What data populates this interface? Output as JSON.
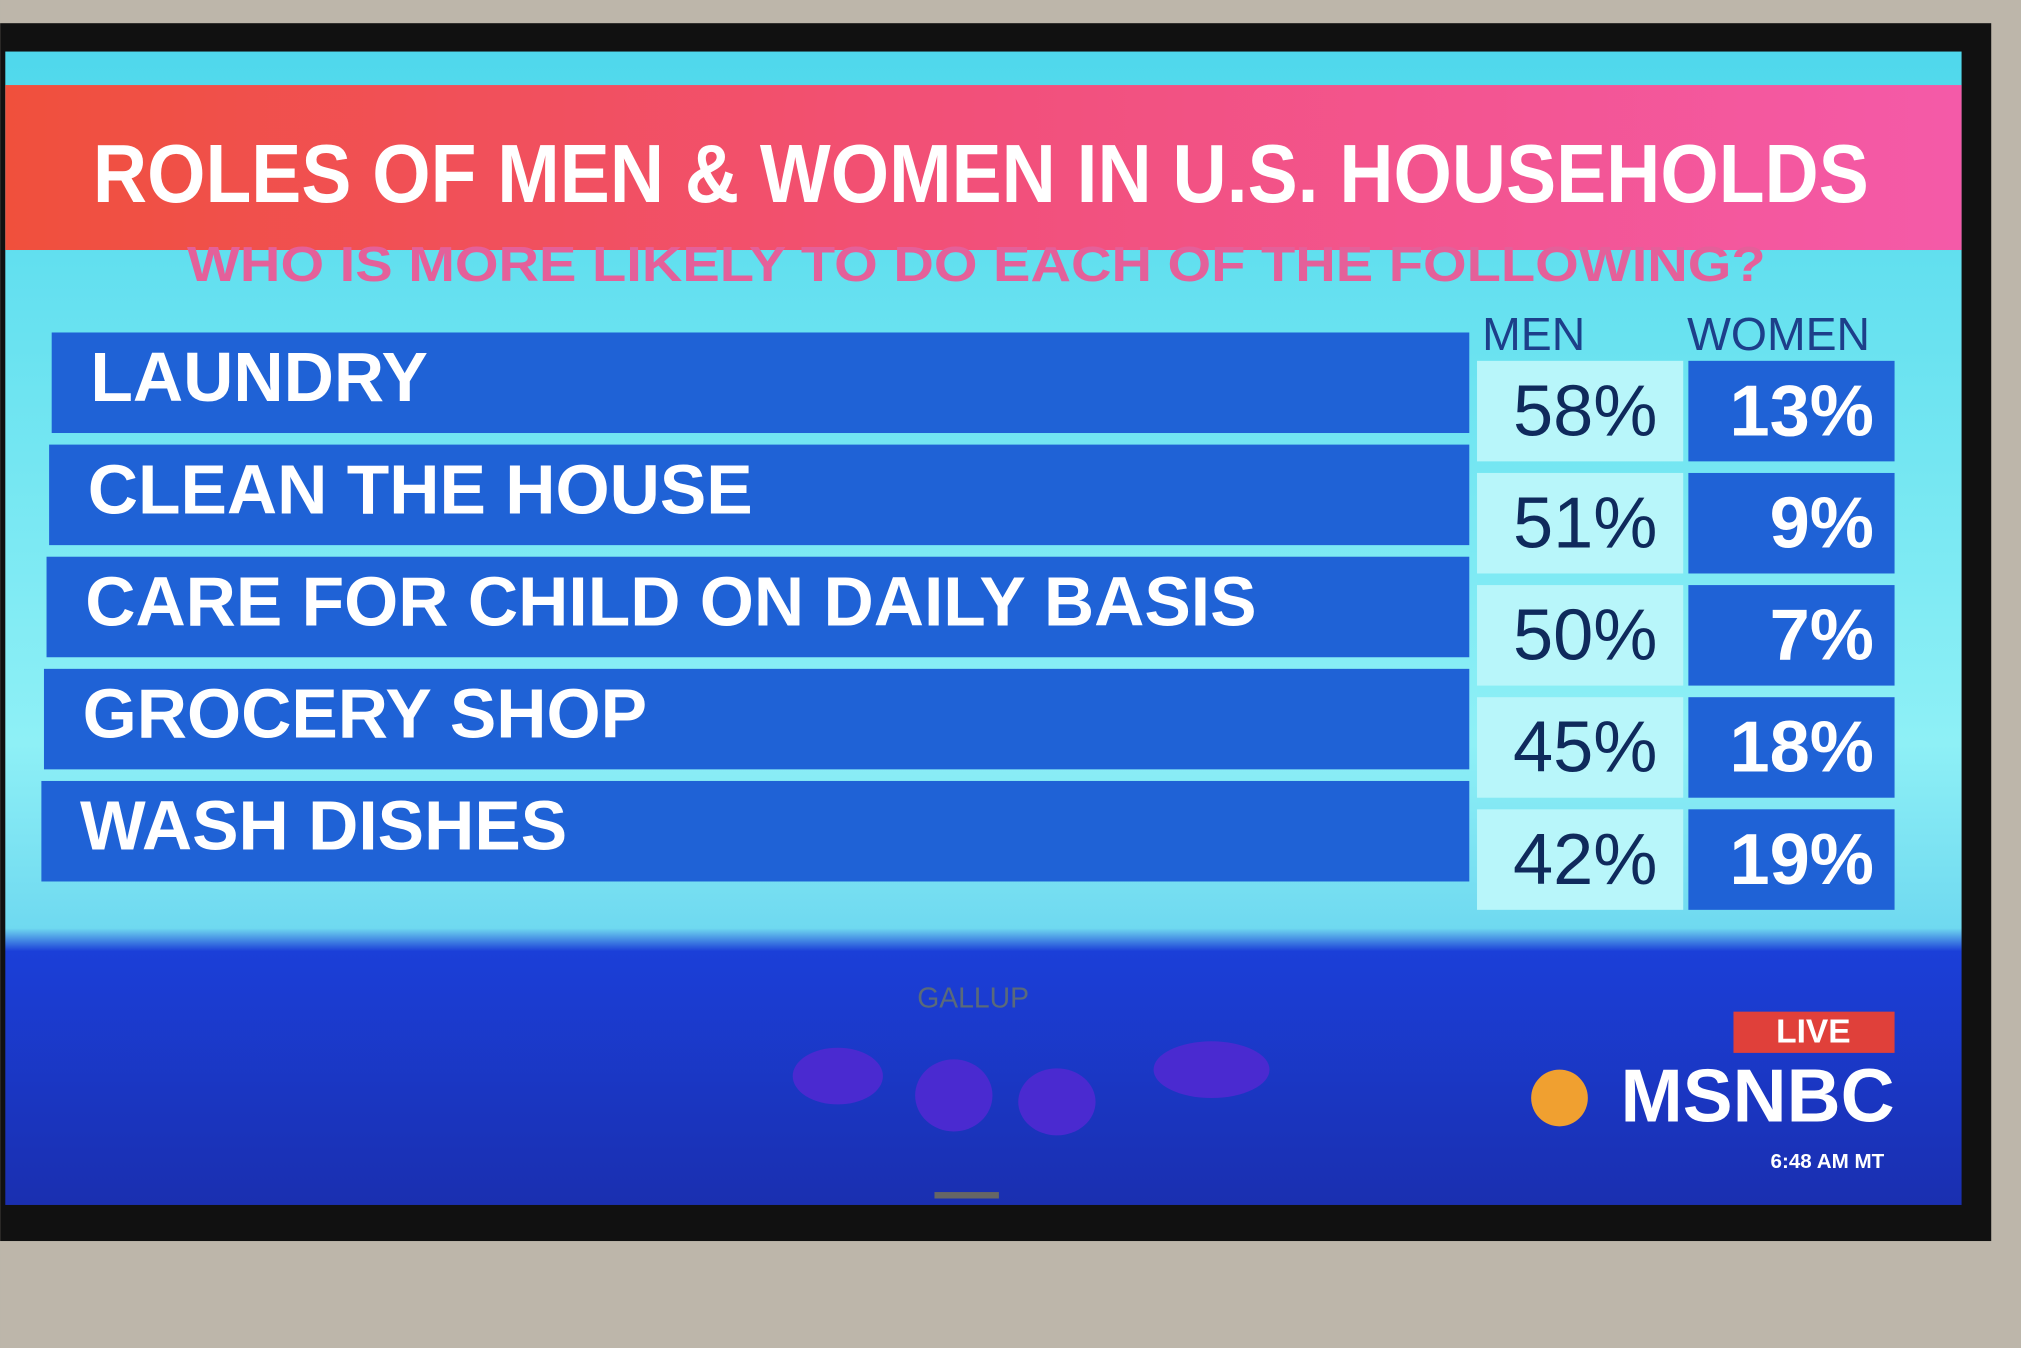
{
  "title": "ROLES OF MEN & WOMEN IN U.S. HOUSEHOLDS",
  "subtitle": "WHO IS MORE LIKELY TO DO EACH OF THE FOLLOWING?",
  "table": {
    "header": [
      "MEN",
      "WOMEN"
    ],
    "rows": [
      [
        "LAUNDRY",
        "58%",
        "13%"
      ],
      [
        "CLEAN THE HOUSE",
        "51%",
        "9%"
      ],
      [
        "CARE FOR CHILD ON DAILY BASIS",
        "50%",
        "7%"
      ],
      [
        "GROCERY SHOP",
        "45%",
        "18%"
      ],
      [
        "WASH DISHES",
        "42%",
        "19%"
      ]
    ]
  },
  "source": "GALLUP",
  "live": "LIVE",
  "network": "MSNBC",
  "time": "6:48 AM MT"
}
